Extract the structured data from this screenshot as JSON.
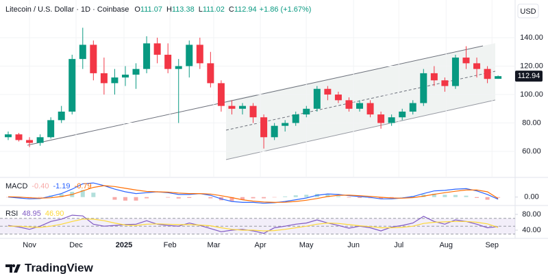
{
  "chart_data": [
    {
      "type": "candlestick",
      "title": "Litecoin / U.S. Dollar · 1D · Coinbase",
      "ohlc_labels": [
        "O",
        "H",
        "L",
        "C"
      ],
      "change_label": "+1.86 (+1.67%)",
      "currency": "USD",
      "up_color": "#089981",
      "down_color": "#f23645",
      "x": [
        0,
        1,
        2,
        3,
        4,
        5,
        6,
        7,
        8,
        9,
        10,
        11,
        12,
        13,
        14,
        15,
        16,
        17,
        18,
        19,
        20,
        21,
        22,
        23,
        24,
        25,
        26,
        27,
        28,
        29,
        30,
        31,
        32,
        33,
        34,
        35,
        36,
        37,
        38,
        39,
        40,
        41,
        42,
        43,
        44,
        45,
        46
      ],
      "open": [
        70,
        72,
        68,
        66,
        70,
        82,
        88,
        125,
        135,
        115,
        108,
        112,
        114,
        118,
        136,
        128,
        118,
        120,
        135,
        122,
        108,
        92,
        90,
        92,
        84,
        70,
        78,
        80,
        86,
        90,
        104,
        100,
        96,
        90,
        94,
        86,
        80,
        84,
        88,
        94,
        115,
        110,
        106,
        126,
        122,
        118,
        111.07
      ],
      "high": [
        74,
        73,
        70,
        72,
        84,
        92,
        128,
        147,
        138,
        126,
        118,
        120,
        122,
        141,
        140,
        136,
        125,
        138,
        140,
        130,
        110,
        96,
        94,
        94,
        86,
        80,
        82,
        88,
        92,
        106,
        106,
        102,
        98,
        96,
        96,
        88,
        86,
        90,
        96,
        118,
        120,
        112,
        128,
        134,
        126,
        120,
        113.38
      ],
      "low": [
        68,
        67,
        63,
        64,
        69,
        80,
        86,
        118,
        110,
        100,
        100,
        106,
        104,
        115,
        122,
        115,
        80,
        112,
        118,
        105,
        88,
        86,
        86,
        80,
        62,
        68,
        74,
        78,
        84,
        88,
        96,
        94,
        88,
        88,
        84,
        76,
        78,
        82,
        86,
        92,
        106,
        102,
        104,
        118,
        112,
        108,
        111.02
      ],
      "close": [
        72,
        68,
        66,
        70,
        82,
        88,
        125,
        135,
        115,
        108,
        112,
        114,
        118,
        136,
        128,
        118,
        120,
        135,
        122,
        108,
        92,
        90,
        92,
        84,
        70,
        78,
        80,
        86,
        90,
        104,
        100,
        96,
        90,
        94,
        86,
        80,
        84,
        88,
        94,
        115,
        110,
        106,
        126,
        122,
        118,
        111,
        112.94
      ],
      "xlim": [
        -0.77,
        47.6
      ],
      "xticks": [
        {
          "value": 2.0,
          "label": "Nov"
        },
        {
          "value": 6.37,
          "label": "Dec"
        },
        {
          "value": 10.87,
          "label": "2025"
        },
        {
          "value": 15.19,
          "label": "Feb"
        },
        {
          "value": 19.3,
          "label": "Mar"
        },
        {
          "value": 23.68,
          "label": "Apr"
        },
        {
          "value": 27.99,
          "label": "May"
        },
        {
          "value": 32.43,
          "label": "Jun"
        },
        {
          "value": 36.68,
          "label": "Jul"
        },
        {
          "value": 41.12,
          "label": "Aug"
        },
        {
          "value": 45.43,
          "label": "Sep"
        }
      ],
      "ylim": [
        42.2,
        166.5
      ],
      "yticks": [
        {
          "value": 60,
          "label": "60.00"
        },
        {
          "value": 80,
          "label": "80.00"
        },
        {
          "value": 100,
          "label": "100.00"
        },
        {
          "value": 120,
          "label": "120.00"
        },
        {
          "value": 140,
          "label": "140.00"
        }
      ],
      "grid": true
    },
    {
      "type": "line",
      "title": "MACD",
      "series": [
        {
          "style": "histogram",
          "color": "#f7a9a7",
          "up_color": "#b2dfdb",
          "values": [
            -0.2,
            -0.5,
            -0.6,
            -0.2,
            0.9,
            1.7,
            3,
            4,
            2.5,
            0,
            -1.5,
            -2,
            -2,
            -0.7,
            0,
            -0.3,
            -0.8,
            -0.5,
            0,
            -0.7,
            -1.8,
            -2.2,
            -1.5,
            -0.7,
            -0.7,
            -0.2,
            0.4,
            1,
            1.3,
            1.8,
            1.5,
            0.5,
            -0.3,
            -0.5,
            -0.6,
            -0.9,
            -0.5,
            0.1,
            0.6,
            1.5,
            1.9,
            1.3,
            1.2,
            0.8,
            -0.5,
            -1.5,
            -0.4
          ],
          "value_labels": [
            null,
            null,
            null,
            null,
            null,
            null,
            null,
            null,
            null,
            null,
            null,
            null,
            null,
            null,
            null,
            null,
            null,
            null,
            null,
            null,
            null,
            null,
            null,
            null,
            null,
            null,
            null,
            null,
            null,
            null,
            null,
            null,
            null,
            null,
            null,
            null,
            null,
            null,
            null,
            null,
            null,
            null,
            null,
            null,
            null,
            null,
            "-0.40"
          ]
        },
        {
          "color": "#2962ff",
          "values": [
            0,
            -0.5,
            -1,
            -0.8,
            0.5,
            2,
            4.5,
            7.5,
            8,
            6.5,
            4.5,
            3,
            2,
            2.5,
            3,
            2.5,
            1.5,
            1.5,
            2,
            1,
            -1,
            -2.5,
            -3,
            -3,
            -3.5,
            -3.2,
            -2.5,
            -1.5,
            -0.5,
            1,
            1.8,
            1.5,
            0.8,
            0.3,
            -0.2,
            -1,
            -1,
            -0.5,
            0.3,
            2,
            3.5,
            3.8,
            4.5,
            4.8,
            3.5,
            1.5,
            -1.19
          ]
        },
        {
          "color": "#ff6d00",
          "values": [
            0.2,
            0,
            -0.4,
            -0.6,
            -0.4,
            0.3,
            1.5,
            3.5,
            5.5,
            6.5,
            6,
            5,
            4,
            3.2,
            3,
            2.8,
            2.3,
            2,
            2,
            1.7,
            0.8,
            -0.3,
            -1.5,
            -2.3,
            -2.8,
            -3,
            -2.9,
            -2.5,
            -1.8,
            -0.8,
            0.3,
            1,
            1.1,
            0.8,
            0.4,
            -0.1,
            -0.5,
            -0.6,
            -0.3,
            0.5,
            1.6,
            2.5,
            3.3,
            4,
            4,
            3,
            -0.79
          ]
        }
      ],
      "ylim": [
        -4,
        10
      ],
      "yticks": [
        {
          "value": 0,
          "label": "0.00"
        }
      ]
    },
    {
      "type": "line",
      "title": "RSI",
      "levels": [
        30,
        50,
        70
      ],
      "series": [
        {
          "color": "#7e57c2",
          "values": [
            52,
            48,
            42,
            50,
            62,
            68,
            78,
            76,
            55,
            50,
            52,
            54,
            55,
            64,
            55,
            52,
            50,
            58,
            52,
            44,
            36,
            40,
            42,
            38,
            32,
            46,
            50,
            55,
            58,
            66,
            58,
            52,
            45,
            50,
            46,
            38,
            48,
            52,
            58,
            75,
            62,
            55,
            66,
            62,
            55,
            46,
            48.95
          ]
        },
        {
          "color": "#fdd835",
          "values": [
            50,
            50,
            48,
            47,
            50,
            55,
            62,
            68,
            68,
            64,
            58,
            53,
            52,
            55,
            56,
            55,
            54,
            54,
            53,
            51,
            46,
            42,
            40,
            40,
            38,
            39,
            42,
            46,
            50,
            55,
            58,
            57,
            54,
            51,
            49,
            46,
            46,
            47,
            50,
            57,
            60,
            61,
            62,
            62,
            60,
            56,
            46.9
          ],
          "value_labels": [
            null,
            null,
            null,
            null,
            null,
            null,
            null,
            null,
            null,
            null,
            null,
            null,
            null,
            null,
            null,
            null,
            null,
            null,
            null,
            null,
            null,
            null,
            null,
            null,
            null,
            null,
            null,
            null,
            null,
            null,
            null,
            null,
            null,
            null,
            null,
            null,
            null,
            null,
            null,
            null,
            null,
            null,
            null,
            null,
            null,
            null,
            "46.90"
          ]
        }
      ],
      "ylim": [
        22.6,
        99
      ],
      "yticks": [
        {
          "value": 40,
          "label": "40.00"
        },
        {
          "value": 80,
          "label": "80.00"
        }
      ]
    }
  ],
  "footer": {
    "brand": "TradingView"
  }
}
